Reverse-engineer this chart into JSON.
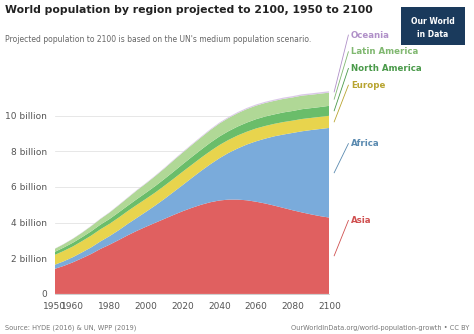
{
  "title": "World population by region projected to 2100, 1950 to 2100",
  "subtitle": "Projected population to 2100 is based on the UN's medium population scenario.",
  "source_left": "Source: HYDE (2016) & UN, WPP (2019)",
  "source_right": "OurWorldInData.org/world-population-growth • CC BY",
  "years": [
    1950,
    1955,
    1960,
    1965,
    1970,
    1975,
    1980,
    1985,
    1990,
    1995,
    2000,
    2005,
    2010,
    2015,
    2020,
    2025,
    2030,
    2035,
    2040,
    2045,
    2050,
    2055,
    2060,
    2065,
    2070,
    2075,
    2080,
    2085,
    2090,
    2095,
    2100
  ],
  "Asia": [
    1.4,
    1.57,
    1.77,
    2.0,
    2.24,
    2.52,
    2.76,
    3.02,
    3.29,
    3.54,
    3.77,
    3.99,
    4.21,
    4.43,
    4.64,
    4.83,
    5.0,
    5.14,
    5.24,
    5.29,
    5.29,
    5.25,
    5.17,
    5.07,
    4.95,
    4.82,
    4.69,
    4.57,
    4.46,
    4.36,
    4.28
  ],
  "Africa": [
    0.23,
    0.26,
    0.29,
    0.33,
    0.37,
    0.42,
    0.48,
    0.55,
    0.64,
    0.73,
    0.84,
    0.97,
    1.12,
    1.29,
    1.47,
    1.68,
    1.9,
    2.13,
    2.37,
    2.62,
    2.87,
    3.13,
    3.39,
    3.64,
    3.89,
    4.12,
    4.34,
    4.55,
    4.73,
    4.89,
    5.03
  ],
  "Europe": [
    0.55,
    0.58,
    0.6,
    0.63,
    0.66,
    0.68,
    0.69,
    0.71,
    0.72,
    0.73,
    0.73,
    0.73,
    0.74,
    0.74,
    0.75,
    0.74,
    0.74,
    0.74,
    0.74,
    0.73,
    0.73,
    0.72,
    0.72,
    0.71,
    0.7,
    0.7,
    0.69,
    0.69,
    0.68,
    0.68,
    0.68
  ],
  "NorthAmerica": [
    0.17,
    0.19,
    0.21,
    0.22,
    0.24,
    0.26,
    0.27,
    0.29,
    0.3,
    0.32,
    0.34,
    0.36,
    0.38,
    0.4,
    0.42,
    0.44,
    0.45,
    0.47,
    0.48,
    0.49,
    0.5,
    0.51,
    0.52,
    0.53,
    0.53,
    0.54,
    0.54,
    0.55,
    0.55,
    0.55,
    0.56
  ],
  "LatinAmerica": [
    0.17,
    0.19,
    0.22,
    0.25,
    0.29,
    0.32,
    0.36,
    0.4,
    0.44,
    0.49,
    0.52,
    0.56,
    0.59,
    0.63,
    0.65,
    0.67,
    0.69,
    0.71,
    0.73,
    0.74,
    0.75,
    0.76,
    0.76,
    0.76,
    0.76,
    0.76,
    0.76,
    0.76,
    0.75,
    0.75,
    0.74
  ],
  "Oceania": [
    0.013,
    0.015,
    0.016,
    0.018,
    0.02,
    0.022,
    0.023,
    0.026,
    0.027,
    0.029,
    0.031,
    0.033,
    0.036,
    0.039,
    0.042,
    0.045,
    0.048,
    0.051,
    0.054,
    0.057,
    0.06,
    0.063,
    0.065,
    0.067,
    0.069,
    0.071,
    0.073,
    0.075,
    0.077,
    0.078,
    0.08
  ],
  "colors": {
    "Asia": "#e06060",
    "Africa": "#7aabdb",
    "Europe": "#e8d44d",
    "NorthAmerica": "#6abd6a",
    "LatinAmerica": "#b0d896",
    "Oceania": "#dac8e8"
  },
  "label_colors": {
    "Asia": "#d05050",
    "Africa": "#5a8ab0",
    "Europe": "#b8a430",
    "NorthAmerica": "#4a9a4a",
    "LatinAmerica": "#80b870",
    "Oceania": "#b090c8"
  },
  "legend_labels": {
    "Asia": "Asia",
    "Africa": "Africa",
    "Europe": "Europe",
    "NorthAmerica": "North America",
    "LatinAmerica": "Latin America",
    "Oceania": "Oceania"
  },
  "yticks": [
    0,
    2,
    4,
    6,
    8,
    10
  ],
  "ytick_labels": [
    "0",
    "2 billion",
    "4 billion",
    "6 billion",
    "8 billion",
    "10 billion"
  ],
  "ylim": [
    0,
    11.8
  ],
  "xlim": [
    1950,
    2100
  ],
  "logo_bg": "#1a3a5c",
  "logo_text1": "Our World",
  "logo_text2": "in Data"
}
